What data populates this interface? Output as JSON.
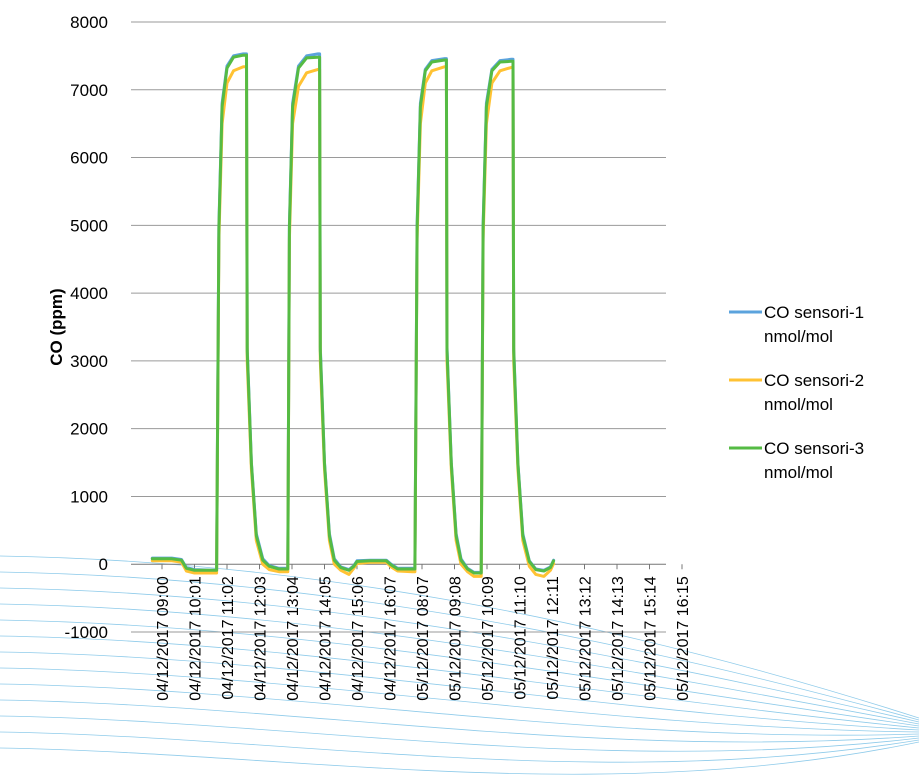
{
  "chart_data": {
    "type": "line",
    "title": "",
    "xlabel": "",
    "ylabel": "CO (ppm)",
    "ylim": [
      -1000,
      8000
    ],
    "y_ticks": [
      -1000,
      0,
      1000,
      2000,
      3000,
      4000,
      5000,
      6000,
      7000,
      8000
    ],
    "grid": "horizontal",
    "legend_position": "right",
    "x_tick_labels": [
      "04/12/2017 09:00",
      "04/12/2017 10:01",
      "04/12/2017 11:02",
      "04/12/2017 12:03",
      "04/12/2017 13:04",
      "04/12/2017 14:05",
      "04/12/2017 15:06",
      "04/12/2017 16:07",
      "05/12/2017 08:07",
      "05/12/2017 09:08",
      "05/12/2017 10:09",
      "05/12/2017 11:10",
      "05/12/2017 12:11",
      "05/12/2017 13:12",
      "05/12/2017 14:13",
      "05/12/2017 15:14",
      "05/12/2017 16:15"
    ],
    "x_range": [
      0,
      16.6
    ],
    "series": [
      {
        "name": "CO sensori-1 nmol/mol",
        "color": "#5BA3DD",
        "points": [
          [
            -0.3,
            90
          ],
          [
            0.3,
            90
          ],
          [
            0.6,
            70
          ],
          [
            0.75,
            -50
          ],
          [
            1.0,
            -80
          ],
          [
            1.6,
            -90
          ],
          [
            1.68,
            -90
          ],
          [
            1.75,
            5000
          ],
          [
            1.85,
            6800
          ],
          [
            2.0,
            7350
          ],
          [
            2.2,
            7500
          ],
          [
            2.5,
            7530
          ],
          [
            2.6,
            7530
          ],
          [
            2.62,
            3200
          ],
          [
            2.75,
            1500
          ],
          [
            2.9,
            450
          ],
          [
            3.1,
            80
          ],
          [
            3.3,
            -20
          ],
          [
            3.6,
            -60
          ],
          [
            3.85,
            -60
          ],
          [
            3.87,
            -60
          ],
          [
            3.92,
            5000
          ],
          [
            4.02,
            6800
          ],
          [
            4.2,
            7350
          ],
          [
            4.45,
            7500
          ],
          [
            4.8,
            7530
          ],
          [
            4.85,
            7530
          ],
          [
            4.87,
            3200
          ],
          [
            5.0,
            1500
          ],
          [
            5.15,
            450
          ],
          [
            5.3,
            80
          ],
          [
            5.5,
            -40
          ],
          [
            5.75,
            -80
          ],
          [
            5.9,
            -20
          ],
          [
            6.0,
            50
          ],
          [
            6.4,
            60
          ],
          [
            6.9,
            60
          ],
          [
            7.05,
            0
          ],
          [
            7.25,
            -60
          ],
          [
            7.7,
            -60
          ],
          [
            7.78,
            -60
          ],
          [
            7.85,
            5000
          ],
          [
            7.95,
            6800
          ],
          [
            8.1,
            7300
          ],
          [
            8.3,
            7430
          ],
          [
            8.7,
            7460
          ],
          [
            8.75,
            7460
          ],
          [
            8.77,
            3200
          ],
          [
            8.9,
            1500
          ],
          [
            9.05,
            450
          ],
          [
            9.2,
            80
          ],
          [
            9.4,
            -60
          ],
          [
            9.6,
            -120
          ],
          [
            9.8,
            -120
          ],
          [
            9.82,
            -120
          ],
          [
            9.88,
            5000
          ],
          [
            9.98,
            6800
          ],
          [
            10.15,
            7300
          ],
          [
            10.4,
            7430
          ],
          [
            10.75,
            7450
          ],
          [
            10.8,
            7450
          ],
          [
            10.82,
            3200
          ],
          [
            10.95,
            1500
          ],
          [
            11.1,
            450
          ],
          [
            11.3,
            50
          ],
          [
            11.5,
            -70
          ],
          [
            11.75,
            -90
          ],
          [
            11.95,
            -40
          ],
          [
            12.05,
            60
          ]
        ]
      },
      {
        "name": "CO sensori-2 nmol/mol",
        "color": "#FFC233",
        "points": [
          [
            -0.3,
            50
          ],
          [
            0.3,
            50
          ],
          [
            0.6,
            30
          ],
          [
            0.75,
            -100
          ],
          [
            1.0,
            -130
          ],
          [
            1.6,
            -130
          ],
          [
            1.68,
            -130
          ],
          [
            1.75,
            4800
          ],
          [
            1.85,
            6500
          ],
          [
            2.0,
            7100
          ],
          [
            2.2,
            7280
          ],
          [
            2.5,
            7340
          ],
          [
            2.6,
            7340
          ],
          [
            2.62,
            3000
          ],
          [
            2.75,
            1400
          ],
          [
            2.9,
            350
          ],
          [
            3.1,
            0
          ],
          [
            3.3,
            -80
          ],
          [
            3.6,
            -110
          ],
          [
            3.85,
            -110
          ],
          [
            3.87,
            -110
          ],
          [
            3.92,
            4800
          ],
          [
            4.02,
            6500
          ],
          [
            4.2,
            7050
          ],
          [
            4.45,
            7250
          ],
          [
            4.8,
            7300
          ],
          [
            4.85,
            7300
          ],
          [
            4.87,
            3000
          ],
          [
            5.0,
            1400
          ],
          [
            5.15,
            350
          ],
          [
            5.3,
            0
          ],
          [
            5.5,
            -90
          ],
          [
            5.75,
            -150
          ],
          [
            5.9,
            -60
          ],
          [
            6.0,
            10
          ],
          [
            6.4,
            30
          ],
          [
            6.9,
            30
          ],
          [
            7.05,
            -40
          ],
          [
            7.25,
            -100
          ],
          [
            7.7,
            -110
          ],
          [
            7.78,
            -110
          ],
          [
            7.85,
            4800
          ],
          [
            7.95,
            6500
          ],
          [
            8.1,
            7100
          ],
          [
            8.3,
            7280
          ],
          [
            8.7,
            7340
          ],
          [
            8.75,
            7340
          ],
          [
            8.77,
            3000
          ],
          [
            8.9,
            1400
          ],
          [
            9.05,
            350
          ],
          [
            9.2,
            0
          ],
          [
            9.4,
            -110
          ],
          [
            9.6,
            -180
          ],
          [
            9.8,
            -180
          ],
          [
            9.82,
            -180
          ],
          [
            9.88,
            4800
          ],
          [
            9.98,
            6500
          ],
          [
            10.15,
            7100
          ],
          [
            10.4,
            7280
          ],
          [
            10.75,
            7330
          ],
          [
            10.8,
            7330
          ],
          [
            10.82,
            3000
          ],
          [
            10.95,
            1400
          ],
          [
            11.1,
            350
          ],
          [
            11.3,
            -30
          ],
          [
            11.5,
            -150
          ],
          [
            11.75,
            -180
          ],
          [
            11.95,
            -90
          ],
          [
            12.05,
            10
          ]
        ]
      },
      {
        "name": "CO sensori-3 nmol/mol",
        "color": "#55BB44",
        "points": [
          [
            -0.3,
            80
          ],
          [
            0.3,
            80
          ],
          [
            0.6,
            60
          ],
          [
            0.75,
            -60
          ],
          [
            1.0,
            -90
          ],
          [
            1.6,
            -90
          ],
          [
            1.68,
            -90
          ],
          [
            1.75,
            4950
          ],
          [
            1.85,
            6750
          ],
          [
            2.0,
            7320
          ],
          [
            2.2,
            7480
          ],
          [
            2.5,
            7510
          ],
          [
            2.6,
            7510
          ],
          [
            2.62,
            3150
          ],
          [
            2.75,
            1480
          ],
          [
            2.9,
            420
          ],
          [
            3.1,
            60
          ],
          [
            3.3,
            -30
          ],
          [
            3.6,
            -70
          ],
          [
            3.85,
            -70
          ],
          [
            3.87,
            -70
          ],
          [
            3.92,
            4950
          ],
          [
            4.02,
            6750
          ],
          [
            4.2,
            7320
          ],
          [
            4.45,
            7470
          ],
          [
            4.8,
            7480
          ],
          [
            4.85,
            7480
          ],
          [
            4.87,
            3150
          ],
          [
            5.0,
            1480
          ],
          [
            5.15,
            420
          ],
          [
            5.3,
            60
          ],
          [
            5.5,
            -50
          ],
          [
            5.75,
            -90
          ],
          [
            5.9,
            -30
          ],
          [
            6.0,
            40
          ],
          [
            6.4,
            50
          ],
          [
            6.9,
            50
          ],
          [
            7.05,
            -10
          ],
          [
            7.25,
            -70
          ],
          [
            7.7,
            -70
          ],
          [
            7.78,
            -70
          ],
          [
            7.85,
            4950
          ],
          [
            7.95,
            6750
          ],
          [
            8.1,
            7280
          ],
          [
            8.3,
            7410
          ],
          [
            8.7,
            7440
          ],
          [
            8.75,
            7440
          ],
          [
            8.77,
            3150
          ],
          [
            8.9,
            1480
          ],
          [
            9.05,
            420
          ],
          [
            9.2,
            60
          ],
          [
            9.4,
            -70
          ],
          [
            9.6,
            -130
          ],
          [
            9.8,
            -130
          ],
          [
            9.82,
            -130
          ],
          [
            9.88,
            4950
          ],
          [
            9.98,
            6750
          ],
          [
            10.15,
            7280
          ],
          [
            10.4,
            7410
          ],
          [
            10.75,
            7420
          ],
          [
            10.8,
            7420
          ],
          [
            10.82,
            3150
          ],
          [
            10.95,
            1480
          ],
          [
            11.1,
            420
          ],
          [
            11.3,
            40
          ],
          [
            11.5,
            -80
          ],
          [
            11.75,
            -100
          ],
          [
            11.95,
            -50
          ],
          [
            12.05,
            50
          ]
        ]
      }
    ]
  }
}
